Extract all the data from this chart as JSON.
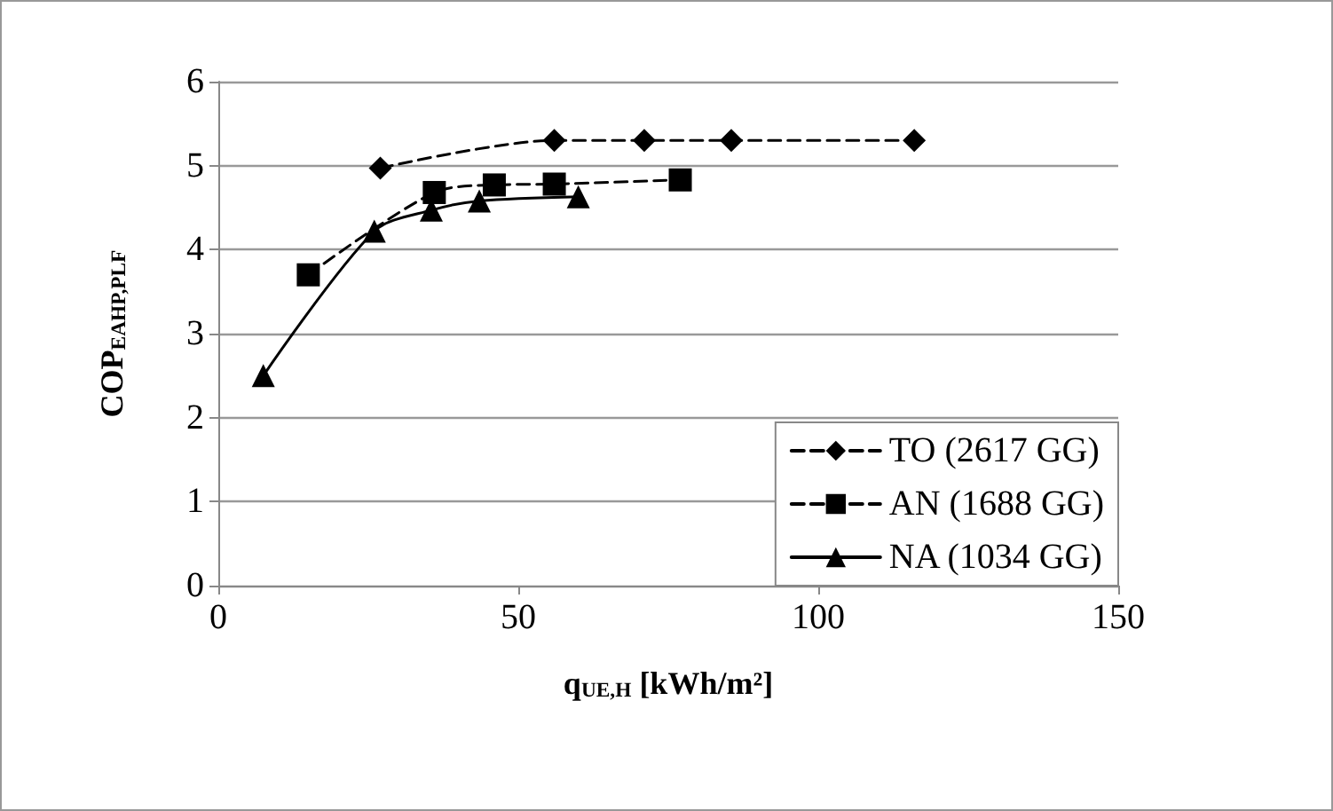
{
  "chart_data": {
    "type": "line",
    "xlabel": "q$_{UE,H}$ [kWh/m²]",
    "ylabel": "COP$_{EAHP,PLF}$",
    "xlim": [
      0,
      150
    ],
    "xticks": [
      0,
      50,
      100,
      150
    ],
    "ylim": [
      0,
      6
    ],
    "yticks": [
      0,
      1,
      2,
      3,
      4,
      5,
      6
    ],
    "grid": "y",
    "legend": "bottom right",
    "series": [
      {
        "name": "TO (2617 GG)",
        "color": "#000000",
        "marker": "diamond",
        "line_style": "dashed",
        "x": [
          27,
          56,
          71,
          85.5,
          116
        ],
        "values": [
          4.97,
          5.3,
          5.3,
          5.3,
          5.3
        ]
      },
      {
        "name": "AN (1688 GG)",
        "color": "#000000",
        "marker": "square",
        "line_style": "dashed",
        "x": [
          15,
          36,
          46,
          56,
          77
        ],
        "values": [
          3.7,
          4.68,
          4.77,
          4.78,
          4.83
        ]
      },
      {
        "name": "NA (1034 GG)",
        "color": "#000000",
        "marker": "triangle",
        "line_style": "solid",
        "x": [
          7.5,
          26,
          35.5,
          43.5,
          60
        ],
        "values": [
          2.5,
          4.22,
          4.47,
          4.58,
          4.63
        ]
      }
    ]
  }
}
